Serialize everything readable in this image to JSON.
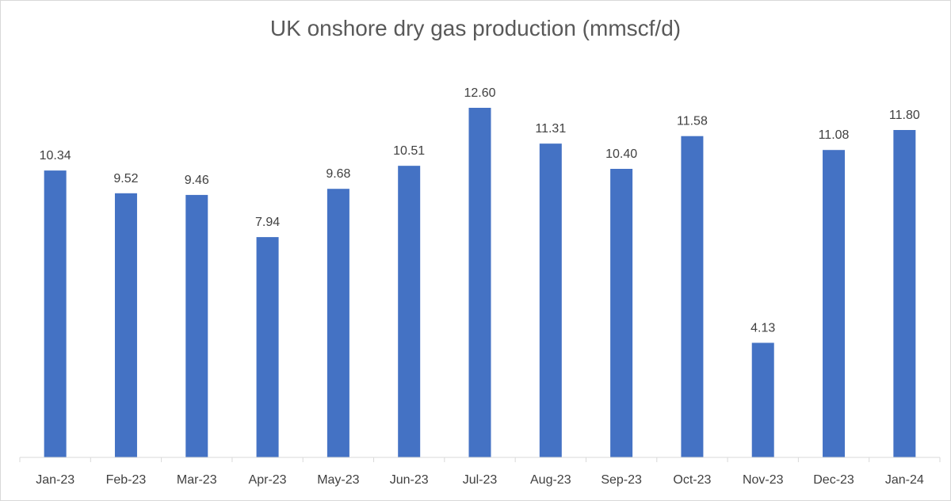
{
  "chart_data": {
    "type": "bar",
    "title": "UK onshore dry gas production (mmscf/d)",
    "categories": [
      "Jan-23",
      "Feb-23",
      "Mar-23",
      "Apr-23",
      "May-23",
      "Jun-23",
      "Jul-23",
      "Aug-23",
      "Sep-23",
      "Oct-23",
      "Nov-23",
      "Dec-23",
      "Jan-24"
    ],
    "series": [
      {
        "values": [
          10.34,
          9.52,
          9.46,
          7.94,
          9.68,
          10.51,
          12.6,
          11.31,
          10.4,
          11.58,
          4.13,
          11.08,
          11.8
        ],
        "value_labels": [
          "10.34",
          "9.52",
          "9.46",
          "7.94",
          "9.68",
          "10.51",
          "12.60",
          "11.31",
          "10.40",
          "11.58",
          "4.13",
          "11.08",
          "11.80"
        ],
        "color": "#4472c4"
      }
    ],
    "ylim": [
      0,
      14
    ],
    "grid": false,
    "legend": "none",
    "data_labels": true
  }
}
